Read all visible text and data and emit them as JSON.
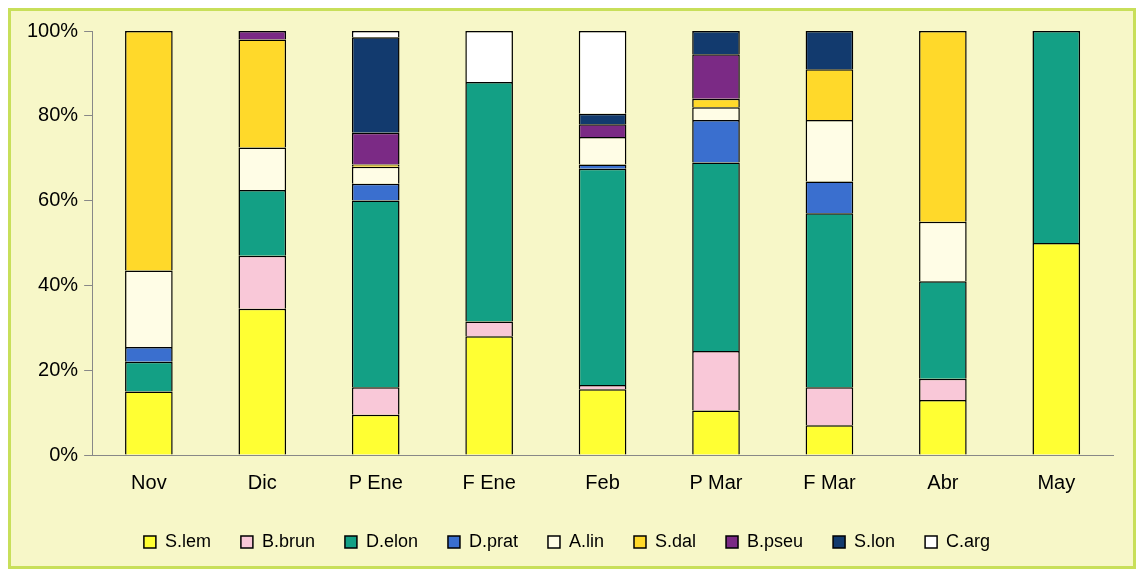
{
  "chart_data": {
    "type": "bar",
    "stacked": true,
    "categories": [
      "Nov",
      "Dic",
      "P Ene",
      "F Ene",
      "Feb",
      "P Mar",
      "F Mar",
      "Abr",
      "May"
    ],
    "series": [
      {
        "name": "S.lem",
        "color": "#ffff33",
        "values": [
          15,
          34.5,
          9.5,
          28,
          15.5,
          10.5,
          7,
          13,
          50
        ]
      },
      {
        "name": "B.brun",
        "color": "#f9c8d8",
        "values": [
          0,
          12.5,
          6.5,
          3.5,
          1,
          14,
          9,
          5,
          0
        ]
      },
      {
        "name": "D.elon",
        "color": "#13a085",
        "values": [
          7,
          15.5,
          44,
          56.5,
          51,
          44.5,
          41,
          23,
          50
        ]
      },
      {
        "name": "D.prat",
        "color": "#3a6fcf",
        "values": [
          3.5,
          0,
          4,
          0,
          1,
          10,
          7.5,
          0,
          0
        ]
      },
      {
        "name": "A.lin",
        "color": "#fffde6",
        "values": [
          18,
          10,
          4,
          0,
          6.5,
          3,
          14.5,
          14,
          0
        ]
      },
      {
        "name": "S.dal",
        "color": "#ffd92a",
        "values": [
          56.5,
          25.5,
          0.5,
          0,
          0,
          2,
          12,
          45,
          0
        ]
      },
      {
        "name": "B.pseu",
        "color": "#7b2a85",
        "values": [
          0,
          2,
          7.5,
          0,
          3,
          10.5,
          0,
          0,
          0
        ]
      },
      {
        "name": "S.lon",
        "color": "#123a6e",
        "values": [
          0,
          0,
          22.5,
          0,
          2.5,
          5.5,
          9,
          0,
          0
        ]
      },
      {
        "name": "C.arg",
        "color": "#ffffff",
        "values": [
          0,
          0,
          1.5,
          12,
          19.5,
          0,
          0,
          0,
          0
        ]
      }
    ],
    "ylim": [
      0,
      100
    ],
    "yticks": [
      {
        "value": 0,
        "label": "0%"
      },
      {
        "value": 20,
        "label": "20%"
      },
      {
        "value": 40,
        "label": "40%"
      },
      {
        "value": 60,
        "label": "60%"
      },
      {
        "value": 80,
        "label": "80%"
      },
      {
        "value": 100,
        "label": "100%"
      }
    ],
    "grid": false,
    "legend": "bottom"
  }
}
